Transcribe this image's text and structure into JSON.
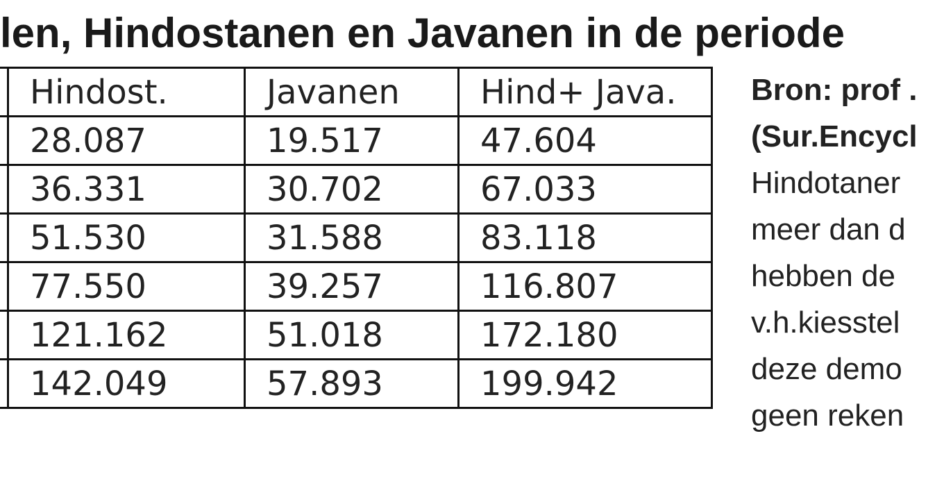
{
  "title": "len, Hindostanen en Javanen in de periode",
  "table": {
    "headers": [
      "",
      "Hindost.",
      "Javanen",
      "Hind+ Java."
    ],
    "rows": [
      [
        "",
        "28.087",
        "19.517",
        "47.604"
      ],
      [
        "",
        "36.331",
        "30.702",
        "67.033"
      ],
      [
        "",
        "51.530",
        "31.588",
        "83.118"
      ],
      [
        "",
        "77.550",
        "39.257",
        "116.807"
      ],
      [
        "",
        "121.162",
        "51.018",
        "172.180"
      ],
      [
        "",
        "142.049",
        "57.893",
        "199.942"
      ]
    ]
  },
  "sidebar": {
    "lines": [
      "Bron: prof .",
      "(Sur.Encycl",
      "Hindotaner",
      "meer dan d",
      "hebben de",
      "v.h.kiesstel",
      "deze demo",
      "geen reken"
    ]
  }
}
